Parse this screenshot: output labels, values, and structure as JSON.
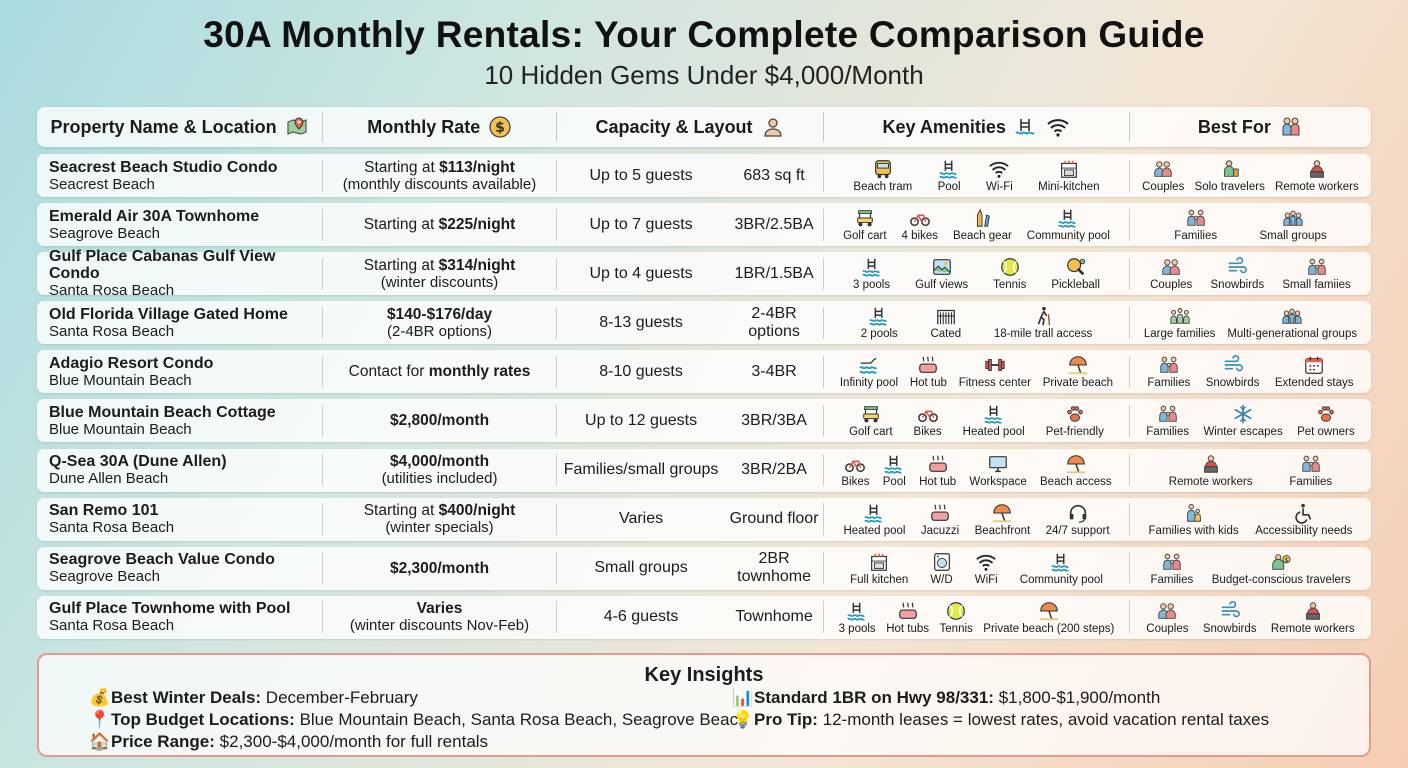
{
  "title": "30A Monthly Rentals: Your Complete Comparison Guide",
  "subtitle": "10 Hidden Gems Under $4,000/Month",
  "headers": {
    "property": "Property Name & Location",
    "rate": "Monthly Rate",
    "capacity": "Capacity & Layout",
    "amenities": "Key Amenities",
    "best_for": "Best For"
  },
  "rows": [
    {
      "name": "Seacrest Beach Studio Condo",
      "location": "Seacrest Beach",
      "rate_pre": "Starting at ",
      "rate_bold": "$113/night",
      "rate_post": "",
      "rate_sub": "(monthly discounts available)",
      "guests": "Up to 5 guests",
      "layout": "683 sq ft",
      "amenities": [
        {
          "icon": "bus-icon",
          "label": "Beach tram"
        },
        {
          "icon": "pool-icon",
          "label": "Pool"
        },
        {
          "icon": "wifi-icon",
          "label": "Wi-Fi"
        },
        {
          "icon": "kitchen-icon",
          "label": "Mini-kitchen"
        }
      ],
      "best": [
        {
          "icon": "couple-icon",
          "label": "Couples"
        },
        {
          "icon": "traveler-icon",
          "label": "Solo travelers"
        },
        {
          "icon": "remote-worker-icon",
          "label": "Remote workers"
        }
      ]
    },
    {
      "name": "Emerald Air 30A Townhome",
      "location": "Seagrove Beach",
      "rate_pre": "Starting at ",
      "rate_bold": "$225/night",
      "rate_post": "",
      "rate_sub": "",
      "guests": "Up to 7 guests",
      "layout": "3BR/2.5BA",
      "amenities": [
        {
          "icon": "golf-cart-icon",
          "label": "Golf cart"
        },
        {
          "icon": "bike-icon",
          "label": "4 bikes"
        },
        {
          "icon": "beach-gear-icon",
          "label": "Beach gear"
        },
        {
          "icon": "pool-icon",
          "label": "Community pool"
        }
      ],
      "best": [
        {
          "icon": "family-icon",
          "label": "Families"
        },
        {
          "icon": "group-icon",
          "label": "Small groups"
        }
      ]
    },
    {
      "name": "Gulf Place Cabanas Gulf View Condo",
      "location": "Santa Rosa Beach",
      "rate_pre": "Starting at ",
      "rate_bold": "$314/night",
      "rate_post": "",
      "rate_sub": "(winter discounts)",
      "guests": "Up to 4 guests",
      "layout": "1BR/1.5BA",
      "amenities": [
        {
          "icon": "pool-icon",
          "label": "3 pools"
        },
        {
          "icon": "view-icon",
          "label": "Gulf views"
        },
        {
          "icon": "tennis-icon",
          "label": "Tennis"
        },
        {
          "icon": "pickleball-icon",
          "label": "Pickleball"
        }
      ],
      "best": [
        {
          "icon": "couple-icon",
          "label": "Couples"
        },
        {
          "icon": "wind-icon",
          "label": "Snowbirds"
        },
        {
          "icon": "family-icon",
          "label": "Small famiies"
        }
      ]
    },
    {
      "name": "Old Florida Village Gated Home",
      "location": "Santa Rosa Beach",
      "rate_pre": "",
      "rate_bold": "$140-$176/day",
      "rate_post": "",
      "rate_sub": "(2-4BR options)",
      "guests": "8-13 guests",
      "layout": "2-4BR options",
      "amenities": [
        {
          "icon": "pool-icon",
          "label": "2 pools"
        },
        {
          "icon": "gate-icon",
          "label": "Cated"
        },
        {
          "icon": "hiker-icon",
          "label": "18-mile trall access"
        }
      ],
      "best": [
        {
          "icon": "large-family-icon",
          "label": "Large families"
        },
        {
          "icon": "group-icon",
          "label": "Multi-generational groups"
        }
      ]
    },
    {
      "name": "Adagio Resort Condo",
      "location": "Blue Mountain Beach",
      "rate_pre": "Contact for ",
      "rate_bold": "monthly rates",
      "rate_post": "",
      "rate_sub": "",
      "guests": "8-10 guests",
      "layout": "3-4BR",
      "amenities": [
        {
          "icon": "infinity-pool-icon",
          "label": "Infinity pool"
        },
        {
          "icon": "hot-tub-icon",
          "label": "Hot tub"
        },
        {
          "icon": "dumbbell-icon",
          "label": "Fitness center"
        },
        {
          "icon": "umbrella-icon",
          "label": "Private beach"
        }
      ],
      "best": [
        {
          "icon": "family-icon",
          "label": "Families"
        },
        {
          "icon": "wind-icon",
          "label": "Snowbirds"
        },
        {
          "icon": "calendar-icon",
          "label": "Extended stays"
        }
      ]
    },
    {
      "name": "Blue Mountain Beach Cottage",
      "location": "Blue Mountain Beach",
      "rate_pre": "",
      "rate_bold": "$2,800/month",
      "rate_post": "",
      "rate_sub": "",
      "guests": "Up to 12 guests",
      "layout": "3BR/3BA",
      "amenities": [
        {
          "icon": "golf-cart-icon",
          "label": "Golf cart"
        },
        {
          "icon": "bike-icon",
          "label": "Bikes"
        },
        {
          "icon": "pool-icon",
          "label": "Heated pool"
        },
        {
          "icon": "paw-icon",
          "label": "Pet-friendly"
        }
      ],
      "best": [
        {
          "icon": "family-icon",
          "label": "Families"
        },
        {
          "icon": "snowflake-icon",
          "label": "Winter escapes"
        },
        {
          "icon": "paw-icon",
          "label": "Pet owners"
        }
      ]
    },
    {
      "name": "Q-Sea 30A (Dune Allen)",
      "location": "Dune Allen Beach",
      "rate_pre": "",
      "rate_bold": "$4,000/month",
      "rate_post": "",
      "rate_sub": "(utilities included)",
      "guests": "Families/small groups",
      "layout": "3BR/2BA",
      "amenities": [
        {
          "icon": "bike-icon",
          "label": "Bikes"
        },
        {
          "icon": "pool-icon",
          "label": "Pool"
        },
        {
          "icon": "hot-tub-icon",
          "label": "Hot tub"
        },
        {
          "icon": "monitor-icon",
          "label": "Workspace"
        },
        {
          "icon": "umbrella-icon",
          "label": "Beach access"
        }
      ],
      "best": [
        {
          "icon": "remote-worker-icon",
          "label": "Remote workers"
        },
        {
          "icon": "family-icon",
          "label": "Families"
        }
      ]
    },
    {
      "name": "San Remo 101",
      "location": "Santa Rosa Beach",
      "rate_pre": "Starting at ",
      "rate_bold": "$400/night",
      "rate_post": "",
      "rate_sub": "(winter specials)",
      "guests": "Varies",
      "layout": "Ground floor",
      "amenities": [
        {
          "icon": "pool-icon",
          "label": "Heated pool"
        },
        {
          "icon": "hot-tub-icon",
          "label": "Jacuzzi"
        },
        {
          "icon": "umbrella-icon",
          "label": "Beachfront"
        },
        {
          "icon": "headset-icon",
          "label": "24/7 support"
        }
      ],
      "best": [
        {
          "icon": "family-kids-icon",
          "label": "Families with kids"
        },
        {
          "icon": "wheelchair-icon",
          "label": "Accessibility needs"
        }
      ]
    },
    {
      "name": "Seagrove Beach Value Condo",
      "location": "Seagrove Beach",
      "rate_pre": "",
      "rate_bold": "$2,300/month",
      "rate_post": "",
      "rate_sub": "",
      "guests": "Small groups",
      "layout": "2BR townhome",
      "amenities": [
        {
          "icon": "kitchen-icon",
          "label": "Full kitchen"
        },
        {
          "icon": "washer-icon",
          "label": "W/D"
        },
        {
          "icon": "wifi-icon",
          "label": "WiFi"
        },
        {
          "icon": "pool-icon",
          "label": "Community pool"
        }
      ],
      "best": [
        {
          "icon": "family-icon",
          "label": "Families"
        },
        {
          "icon": "budget-icon",
          "label": "Budget-conscious travelers"
        }
      ]
    },
    {
      "name": "Gulf Place Townhome with Pool",
      "location": "Santa Rosa Beach",
      "rate_pre": "",
      "rate_bold": "Varies",
      "rate_post": "",
      "rate_sub": "(winter discounts Nov-Feb)",
      "guests": "4-6 guests",
      "layout": "Townhome",
      "amenities": [
        {
          "icon": "pool-icon",
          "label": "3 pools"
        },
        {
          "icon": "hot-tub-icon",
          "label": "Hot tubs"
        },
        {
          "icon": "tennis-icon",
          "label": "Tennis"
        },
        {
          "icon": "umbrella-icon",
          "label": "Private beach (200 steps)"
        }
      ],
      "best": [
        {
          "icon": "couple-icon",
          "label": "Couples"
        },
        {
          "icon": "wind-icon",
          "label": "Snowbirds"
        },
        {
          "icon": "remote-worker-icon",
          "label": "Remote workers"
        }
      ]
    }
  ],
  "insights": {
    "title": "Key Insights",
    "items": [
      {
        "icon": "money-bag-icon",
        "glyph": "💰",
        "label": "Best Winter Deals:",
        "text": " December-February"
      },
      {
        "icon": "pin-icon",
        "glyph": "📍",
        "label": "Top Budget Locations:",
        "text": " Blue Mountain Beach, Santa Rosa Beach, Seagrove Beach"
      },
      {
        "icon": "house-icon",
        "glyph": "🏠",
        "label": "Price Range:",
        "text": " $2,300-$4,000/month for full rentals"
      },
      {
        "icon": "chart-icon",
        "glyph": "📊",
        "label": "Standard 1BR on Hwy 98/331:",
        "text": " $1,800-$1,900/month"
      },
      {
        "icon": "lightbulb-icon",
        "glyph": "💡",
        "label": "Pro Tip:",
        "text": " 12-month leases = lowest rates, avoid vacation rental taxes"
      }
    ]
  }
}
